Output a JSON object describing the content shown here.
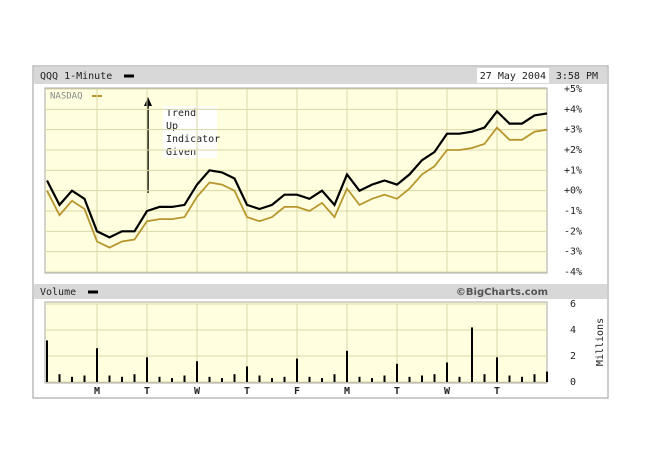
{
  "chart_data": [
    {
      "type": "line",
      "date": "27 May 2004",
      "time": "3:58 PM",
      "annotations": [
        "Trend",
        "Up",
        "Indicator",
        "Given"
      ],
      "x": [
        0,
        0.25,
        0.5,
        0.75,
        1,
        1.25,
        1.5,
        1.75,
        2,
        2.25,
        2.5,
        2.75,
        3,
        3.25,
        3.5,
        3.75,
        4,
        4.25,
        4.5,
        4.75,
        5,
        5.25,
        5.5,
        5.75,
        6,
        6.25,
        6.5,
        6.75,
        7,
        7.25,
        7.5,
        7.75,
        8,
        8.25,
        8.5,
        8.75,
        9,
        9.25,
        9.5,
        9.75,
        10
      ],
      "series": [
        {
          "name": "QQQ 1-Minute",
          "color": "#000000",
          "values": [
            0.5,
            -0.7,
            0,
            -0.4,
            -2,
            -2.3,
            -2,
            -2,
            -1,
            -0.8,
            -0.8,
            -0.7,
            0.3,
            1.0,
            0.9,
            0.6,
            -0.7,
            -0.9,
            -0.7,
            -0.2,
            -0.2,
            -0.4,
            0,
            -0.7,
            0.8,
            0,
            0.3,
            0.5,
            0.3,
            0.8,
            1.5,
            1.9,
            2.8,
            2.8,
            2.9,
            3.1,
            3.9,
            3.3,
            3.3,
            3.7,
            3.8
          ]
        },
        {
          "name": "NASDAQ",
          "color": "#b8962e",
          "values": [
            0,
            -1.2,
            -0.5,
            -0.9,
            -2.5,
            -2.8,
            -2.5,
            -2.4,
            -1.5,
            -1.4,
            -1.4,
            -1.3,
            -0.3,
            0.4,
            0.3,
            0,
            -1.3,
            -1.5,
            -1.3,
            -0.8,
            -0.8,
            -1.0,
            -0.6,
            -1.3,
            0.1,
            -0.7,
            -0.4,
            -0.2,
            -0.4,
            0.1,
            0.8,
            1.2,
            2.0,
            2.0,
            2.1,
            2.3,
            3.1,
            2.5,
            2.5,
            2.9,
            3.0
          ]
        }
      ],
      "xlim": [
        0,
        10
      ],
      "xticks": [
        1,
        2,
        3,
        4,
        5,
        6,
        7,
        8,
        9
      ],
      "ylim": [
        -4,
        5
      ],
      "yticks": [
        {
          "value": 5,
          "label": "+5%"
        },
        {
          "value": 4,
          "label": "+4%"
        },
        {
          "value": 3,
          "label": "+3%"
        },
        {
          "value": 2,
          "label": "+2%"
        },
        {
          "value": 1,
          "label": "+1%"
        },
        {
          "value": 0,
          "label": "+0%"
        },
        {
          "value": -1,
          "label": "-1%"
        },
        {
          "value": -2,
          "label": "-2%"
        },
        {
          "value": -3,
          "label": "-3%"
        },
        {
          "value": -4,
          "label": "-4%"
        }
      ],
      "grid": true
    },
    {
      "type": "bar",
      "source": "©BigCharts.com",
      "ylabel": "Millions",
      "x": [
        0,
        0.25,
        0.5,
        0.75,
        1,
        1.25,
        1.5,
        1.75,
        2,
        2.25,
        2.5,
        2.75,
        3,
        3.25,
        3.5,
        3.75,
        4,
        4.25,
        4.5,
        4.75,
        5,
        5.25,
        5.5,
        5.75,
        6,
        6.25,
        6.5,
        6.75,
        7,
        7.25,
        7.5,
        7.75,
        8,
        8.25,
        8.5,
        8.75,
        9,
        9.25,
        9.5,
        9.75,
        10
      ],
      "series": [
        {
          "name": "Volume",
          "color": "#000000",
          "values": [
            3.2,
            0.6,
            0.4,
            0.5,
            2.6,
            0.5,
            0.4,
            0.6,
            1.9,
            0.4,
            0.3,
            0.5,
            1.6,
            0.4,
            0.3,
            0.6,
            1.2,
            0.5,
            0.3,
            0.4,
            1.8,
            0.4,
            0.3,
            0.6,
            2.4,
            0.4,
            0.3,
            0.5,
            1.4,
            0.4,
            0.5,
            0.6,
            1.5,
            0.4,
            4.2,
            0.6,
            1.9,
            0.5,
            0.4,
            0.6,
            0.8
          ]
        }
      ],
      "xlim": [
        0,
        10
      ],
      "xticks": [
        {
          "value": 1,
          "label": "M"
        },
        {
          "value": 2,
          "label": "T"
        },
        {
          "value": 3,
          "label": "W"
        },
        {
          "value": 4,
          "label": "T"
        },
        {
          "value": 5,
          "label": "F"
        },
        {
          "value": 6,
          "label": "M"
        },
        {
          "value": 7,
          "label": "T"
        },
        {
          "value": 8,
          "label": "W"
        },
        {
          "value": 9,
          "label": "T"
        }
      ],
      "ylim": [
        0,
        6
      ],
      "yticks": [
        0,
        2,
        4,
        6
      ],
      "grid": true
    }
  ]
}
